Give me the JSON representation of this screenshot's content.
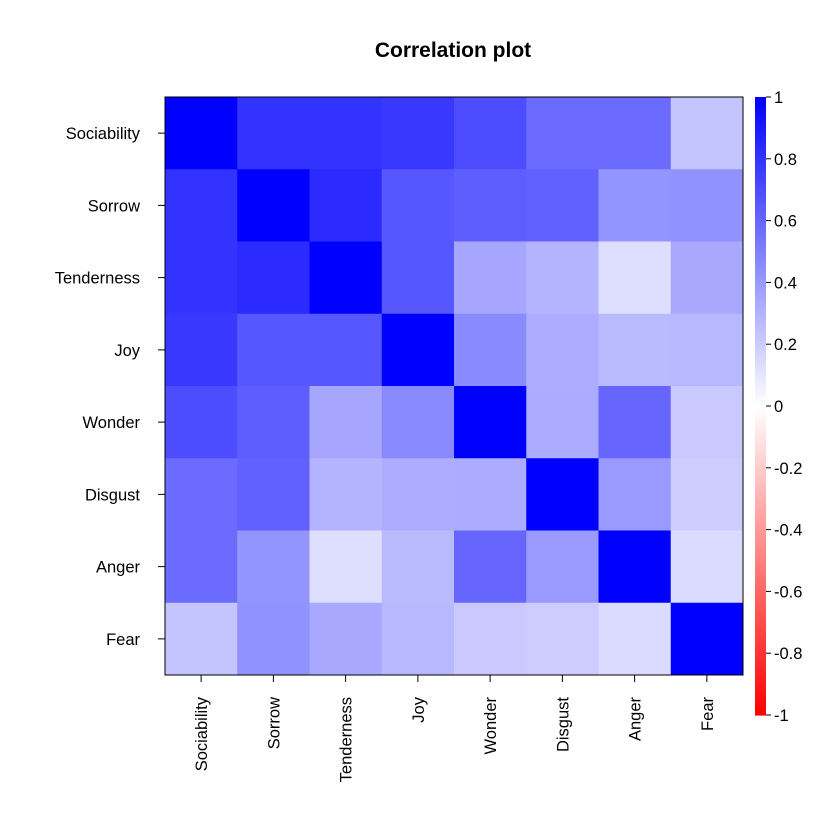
{
  "chart_data": {
    "type": "heatmap",
    "title": "Correlation plot",
    "xlabel": "",
    "ylabel": "",
    "rows": [
      "Sociability",
      "Sorrow",
      "Tenderness",
      "Joy",
      "Wonder",
      "Disgust",
      "Anger",
      "Fear"
    ],
    "columns": [
      "Sociability",
      "Sorrow",
      "Tenderness",
      "Joy",
      "Wonder",
      "Disgust",
      "Anger",
      "Fear"
    ],
    "values": [
      [
        1.0,
        0.8,
        0.8,
        0.78,
        0.7,
        0.58,
        0.58,
        0.23
      ],
      [
        0.8,
        1.0,
        0.83,
        0.66,
        0.63,
        0.62,
        0.42,
        0.43
      ],
      [
        0.8,
        0.83,
        1.0,
        0.66,
        0.35,
        0.3,
        0.13,
        0.34
      ],
      [
        0.78,
        0.66,
        0.66,
        1.0,
        0.46,
        0.32,
        0.27,
        0.28
      ],
      [
        0.7,
        0.63,
        0.35,
        0.46,
        1.0,
        0.33,
        0.6,
        0.21
      ],
      [
        0.58,
        0.62,
        0.3,
        0.32,
        0.33,
        1.0,
        0.4,
        0.2
      ],
      [
        0.58,
        0.42,
        0.13,
        0.27,
        0.6,
        0.4,
        1.0,
        0.14
      ],
      [
        0.23,
        0.43,
        0.34,
        0.28,
        0.21,
        0.2,
        0.14,
        1.0
      ]
    ],
    "color_scale": {
      "min": -1,
      "max": 1,
      "low_color": "#ff0000",
      "mid_color": "#ffffff",
      "high_color": "#0000ff",
      "ticks": [
        -1,
        -0.8,
        -0.6,
        -0.4,
        -0.2,
        0,
        0.2,
        0.4,
        0.6,
        0.8,
        1
      ],
      "tick_labels": [
        "-1",
        "-0.8",
        "-0.6",
        "-0.4",
        "-0.2",
        "0",
        "0.2",
        "0.4",
        "0.6",
        "0.8",
        "1"
      ]
    },
    "x_tick_rotation": "vertical",
    "grid": false,
    "legend": "right"
  }
}
